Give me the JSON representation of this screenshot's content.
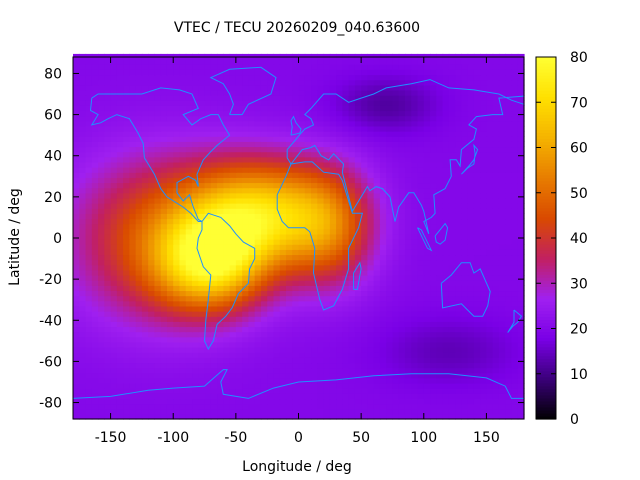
{
  "chart_data": {
    "type": "heatmap",
    "title": "VTEC / TECU 20260209_040.63600",
    "xlabel": "Longitude / deg",
    "ylabel": "Latitude / deg",
    "xlim": [
      -180,
      180
    ],
    "ylim": [
      -88,
      88
    ],
    "xticks": [
      -150,
      -100,
      -50,
      0,
      50,
      100,
      150
    ],
    "yticks": [
      80,
      60,
      40,
      20,
      0,
      -20,
      -40,
      -60,
      -80
    ],
    "colorbar": {
      "range": [
        0,
        80
      ],
      "ticks": [
        0,
        10,
        20,
        30,
        40,
        50,
        60,
        70,
        80
      ],
      "colormap": [
        "#000000",
        "#3a0079",
        "#7a00e6",
        "#a020f0",
        "#c22060",
        "#d94a00",
        "#e87d00",
        "#f5b300",
        "#ffe000",
        "#ffff33"
      ]
    },
    "tec_features": [
      {
        "lon": -30,
        "lat": 12,
        "peak": 75,
        "sigma_lon": 40,
        "sigma_lat": 18
      },
      {
        "lon": -70,
        "lat": -12,
        "peak": 70,
        "sigma_lon": 30,
        "sigma_lat": 16
      },
      {
        "lon": -110,
        "lat": 0,
        "peak": 52,
        "sigma_lon": 50,
        "sigma_lat": 28
      },
      {
        "lon": 25,
        "lat": 5,
        "peak": 50,
        "sigma_lon": 25,
        "sigma_lat": 20
      }
    ],
    "background_tec": 20,
    "coastline_color": "#1e90ff"
  }
}
